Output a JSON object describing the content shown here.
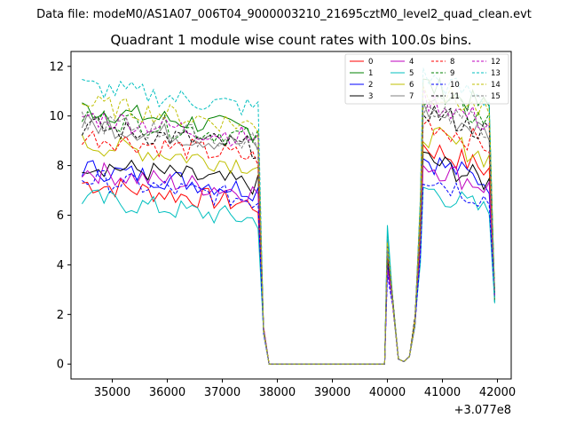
{
  "chart_data": {
    "type": "line",
    "suptitle": "Data file: modeM0/AS1A07_006T04_9000003210_21695cztM0_level2_quad_clean.evt",
    "title": "Quadrant 1 module wise count rates with 100.0s bins.",
    "xlabel": "",
    "ylabel": "",
    "x_offset_label": "+3.077e8",
    "xlim": [
      34250,
      42250
    ],
    "ylim": [
      -0.6,
      12.6
    ],
    "xticks": [
      35000,
      36000,
      37000,
      38000,
      39000,
      40000,
      41000,
      42000
    ],
    "yticks": [
      0,
      2,
      4,
      6,
      8,
      10,
      12
    ],
    "legend_position": "top-right",
    "segments": [
      {
        "x_start": 34450,
        "x_end": 37650,
        "step": 100
      },
      {
        "x_start": 37950,
        "x_end": 39950,
        "step": 100,
        "note": "zero rate gap"
      },
      {
        "x_start": 40050,
        "x_end": 40450,
        "step": 100
      },
      {
        "x_start": 40650,
        "x_end": 41850,
        "step": 100
      }
    ],
    "series": [
      {
        "name": "0",
        "color": "#ff0000",
        "dash": "solid",
        "pre_level": 6.4,
        "peak": 5.2,
        "plateau": 8.5
      },
      {
        "name": "1",
        "color": "#008000",
        "dash": "solid",
        "pre_level": 9.4,
        "peak": 4.9,
        "plateau": 11.0
      },
      {
        "name": "2",
        "color": "#0000ff",
        "dash": "solid",
        "pre_level": 7.0,
        "peak": 4.0,
        "plateau": 8.0
      },
      {
        "name": "3",
        "color": "#000000",
        "dash": "solid",
        "pre_level": 7.2,
        "peak": 4.3,
        "plateau": 8.0
      },
      {
        "name": "4",
        "color": "#bf00bf",
        "dash": "solid",
        "pre_level": 6.9,
        "peak": 3.8,
        "plateau": 7.8
      },
      {
        "name": "5",
        "color": "#00bfbf",
        "dash": "solid",
        "pre_level": 5.8,
        "peak": 5.6,
        "plateau": 6.8
      },
      {
        "name": "6",
        "color": "#bfbf00",
        "dash": "solid",
        "pre_level": 8.0,
        "peak": 5.0,
        "plateau": 9.0
      },
      {
        "name": "7",
        "color": "#808080",
        "dash": "solid",
        "pre_level": 8.8,
        "peak": 5.0,
        "plateau": 10.0
      },
      {
        "name": "8",
        "color": "#ff0000",
        "dash": "dashed",
        "pre_level": 8.3,
        "peak": 4.5,
        "plateau": 9.5
      },
      {
        "name": "9",
        "color": "#008000",
        "dash": "dashed",
        "pre_level": 9.1,
        "peak": 4.7,
        "plateau": 10.5
      },
      {
        "name": "10",
        "color": "#0000ff",
        "dash": "dashed",
        "pre_level": 6.6,
        "peak": 3.6,
        "plateau": 7.3
      },
      {
        "name": "11",
        "color": "#000000",
        "dash": "dashed",
        "pre_level": 8.7,
        "peak": 4.8,
        "plateau": 10.0
      },
      {
        "name": "12",
        "color": "#bf00bf",
        "dash": "dashed",
        "pre_level": 9.1,
        "peak": 4.7,
        "plateau": 10.4
      },
      {
        "name": "13",
        "color": "#00bfbf",
        "dash": "dashed",
        "pre_level": 10.3,
        "peak": 5.2,
        "plateau": 11.3
      },
      {
        "name": "14",
        "color": "#bfbf00",
        "dash": "dashed",
        "pre_level": 9.6,
        "peak": 4.9,
        "plateau": 10.8
      },
      {
        "name": "15",
        "color": "#808080",
        "dash": "dashed",
        "pre_level": 8.9,
        "peak": 4.6,
        "plateau": 10.2
      }
    ]
  }
}
